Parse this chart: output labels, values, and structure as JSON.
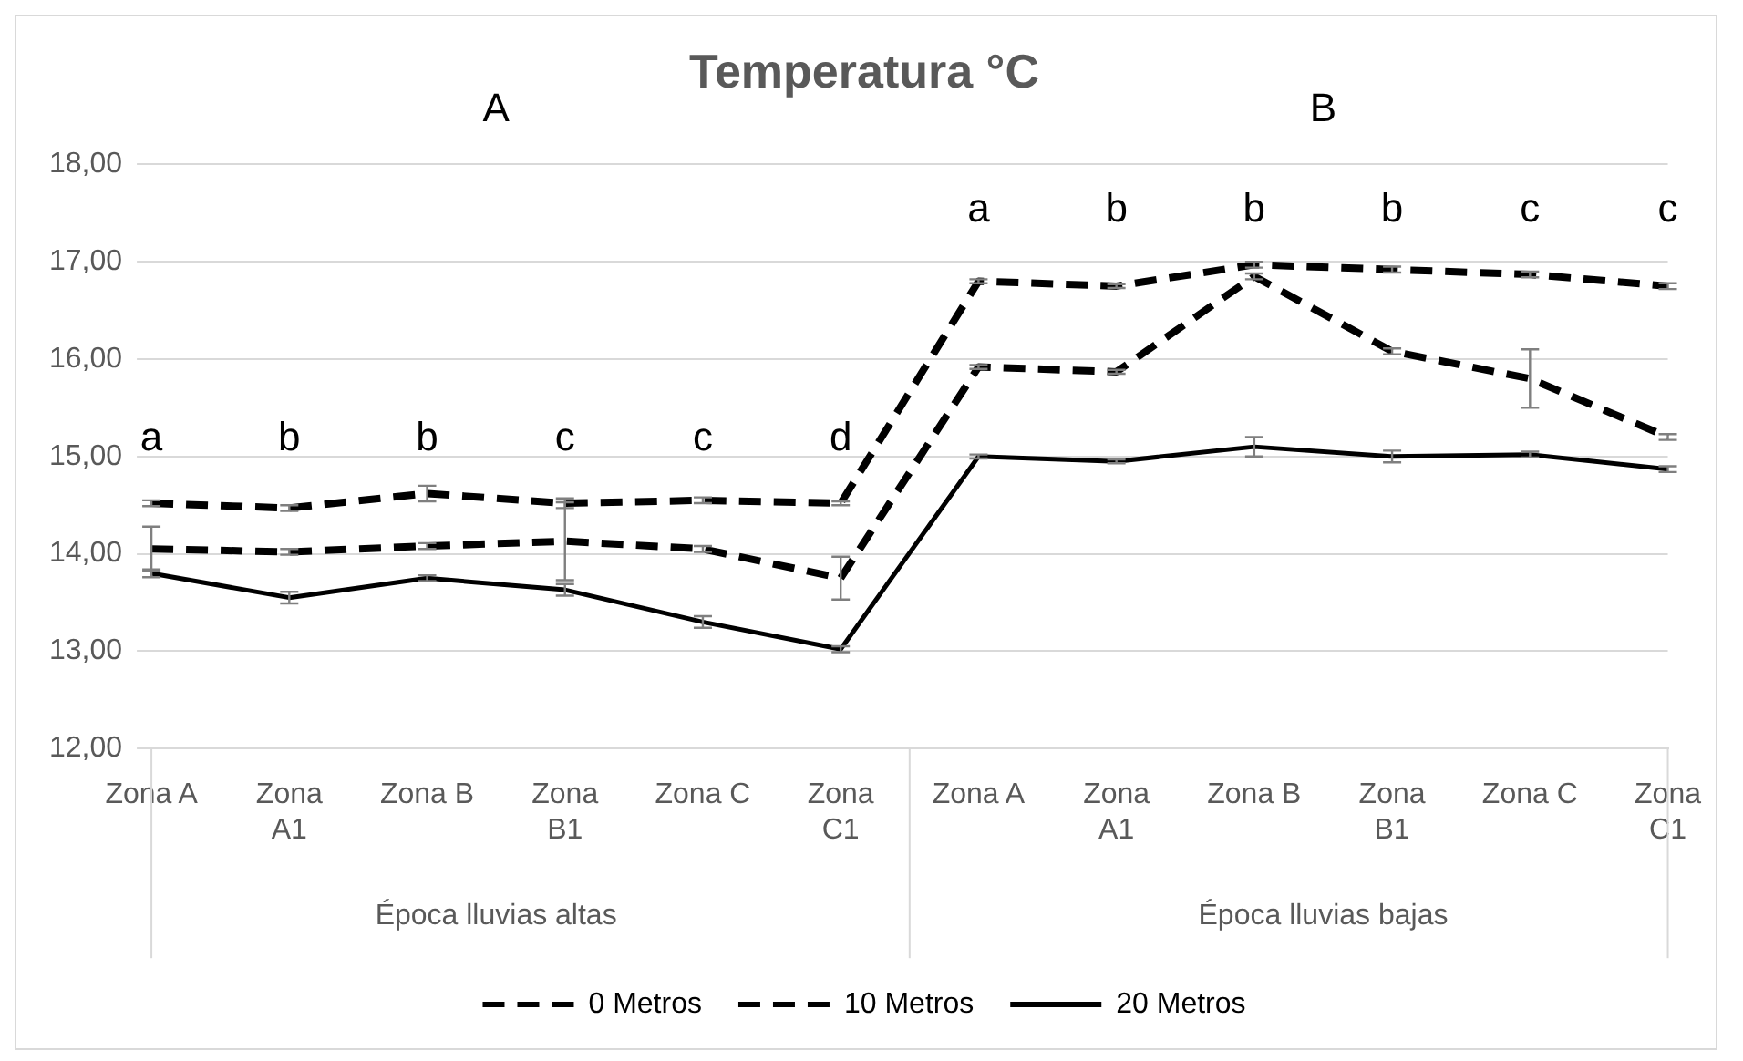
{
  "chart_data": {
    "type": "line",
    "title": "Temperatura °C",
    "categories": [
      "Zona A",
      "Zona A1",
      "Zona B",
      "Zona B1",
      "Zona C",
      "Zona C1",
      "Zona A",
      "Zona A1",
      "Zona B",
      "Zona B1",
      "Zona C",
      "Zona C1"
    ],
    "series": [
      {
        "name": "0 Metros",
        "color": "#000000",
        "line_style": "dashed",
        "values": [
          14.52,
          14.47,
          14.62,
          14.52,
          14.55,
          14.52,
          16.8,
          16.75,
          16.97,
          16.92,
          16.87,
          16.75
        ],
        "errors": [
          0.03,
          0.03,
          0.08,
          0.05,
          0.03,
          0.02,
          0.02,
          0.02,
          0.03,
          0.03,
          0.03,
          0.03
        ]
      },
      {
        "name": "10 Metros",
        "color": "#000000",
        "line_style": "dashed",
        "values": [
          14.05,
          14.02,
          14.08,
          14.13,
          14.05,
          13.75,
          15.92,
          15.87,
          16.85,
          16.08,
          15.8,
          15.2
        ],
        "errors": [
          0.23,
          0.03,
          0.03,
          0.4,
          0.03,
          0.22,
          0.02,
          0.02,
          0.03,
          0.03,
          0.3,
          0.03
        ]
      },
      {
        "name": "20 Metros",
        "color": "#000000",
        "line_style": "solid",
        "values": [
          13.8,
          13.55,
          13.75,
          13.63,
          13.3,
          13.02,
          15.0,
          14.95,
          15.1,
          15.0,
          15.02,
          14.87
        ],
        "errors": [
          0.04,
          0.06,
          0.03,
          0.06,
          0.06,
          0.03,
          0.02,
          0.02,
          0.1,
          0.06,
          0.03,
          0.03
        ]
      }
    ],
    "ylim": [
      12,
      18
    ],
    "yticks": [
      {
        "value": 12,
        "label": "12,00"
      },
      {
        "value": 13,
        "label": "13,00"
      },
      {
        "value": 14,
        "label": "14,00"
      },
      {
        "value": 15,
        "label": "15,00"
      },
      {
        "value": 16,
        "label": "16,00"
      },
      {
        "value": 17,
        "label": "17,00"
      },
      {
        "value": 18,
        "label": "18,00"
      }
    ],
    "grid": "y",
    "legend": "bottom",
    "marker": "none",
    "annotations": [
      "A",
      "B",
      "Época lluvias altas",
      "Época lluvias bajas",
      "a",
      "b",
      "b",
      "c",
      "c",
      "d",
      "a",
      "b",
      "b",
      "b",
      "c",
      "c"
    ]
  }
}
